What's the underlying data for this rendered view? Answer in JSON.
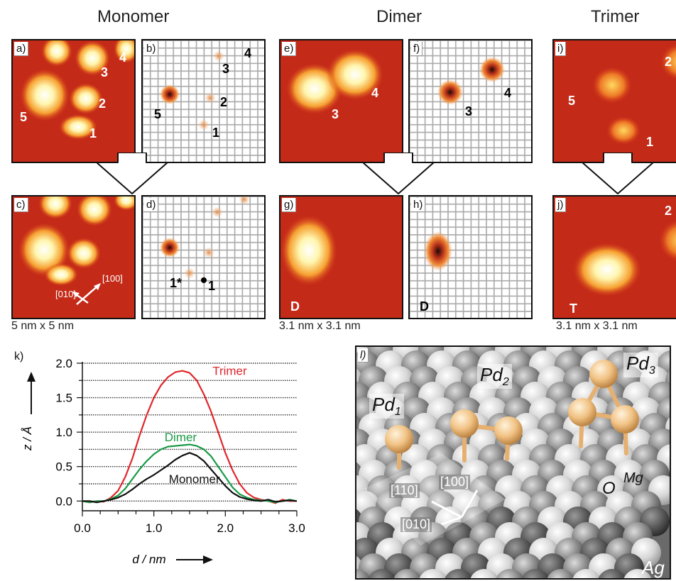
{
  "columns": {
    "monomer": "Monomer",
    "dimer": "Dimer",
    "trimer": "Trimer"
  },
  "panels": {
    "a": "a)",
    "b": "b)",
    "c": "c)",
    "d": "d)",
    "e": "e)",
    "f": "f)",
    "g": "g)",
    "h": "h)",
    "i": "i)",
    "j": "j)",
    "k": "k)",
    "l": "l)"
  },
  "labels": {
    "a": [
      "1",
      "2",
      "3",
      "4",
      "5"
    ],
    "b": [
      "1",
      "2",
      "3",
      "4",
      "5"
    ],
    "d": [
      "1*",
      "1"
    ],
    "e": [
      "3",
      "4"
    ],
    "f": [
      "3",
      "4"
    ],
    "g": "D",
    "h": "D",
    "i": [
      "1",
      "2",
      "5"
    ],
    "j": [
      "2",
      "T"
    ]
  },
  "directions_c": [
    "[010]",
    "[100]"
  ],
  "scales": {
    "monomer": "5 nm x 5 nm",
    "dimer": "3.1 nm x 3.1 nm",
    "trimer": "3.1 nm x 3.1 nm"
  },
  "model": {
    "pd1": "Pd",
    "pd1_sub": "1",
    "pd2": "Pd",
    "pd2_sub": "2",
    "pd3": "Pd",
    "pd3_sub": "3",
    "o": "O",
    "mg": "Mg",
    "ag": "Ag",
    "dirs": [
      "[110]",
      "[100]",
      "[010]"
    ]
  },
  "colors": {
    "trimer": "#e0262c",
    "dimer": "#1a9a46",
    "monomer": "#111111"
  },
  "chart_data": {
    "type": "line",
    "xlabel": "d / nm",
    "ylabel": "z / Å",
    "xlim": [
      0,
      3.0
    ],
    "ylim": [
      -0.1,
      2.0
    ],
    "xticks": [
      "0.0",
      "1.0",
      "2.0",
      "3.0"
    ],
    "yticks": [
      "0.0",
      "0.5",
      "1.0",
      "1.5",
      "2.0"
    ],
    "grid": "horizontal dashed",
    "series": [
      {
        "name": "Trimer",
        "color": "#e0262c",
        "x": [
          0,
          0.1,
          0.2,
          0.3,
          0.4,
          0.5,
          0.6,
          0.7,
          0.8,
          0.9,
          1.0,
          1.1,
          1.2,
          1.3,
          1.4,
          1.5,
          1.6,
          1.7,
          1.8,
          1.9,
          2.0,
          2.1,
          2.2,
          2.3,
          2.4,
          2.5,
          2.6,
          2.7,
          2.8,
          2.9,
          3.0
        ],
        "y": [
          0.0,
          -0.02,
          0.0,
          -0.01,
          0.05,
          0.15,
          0.35,
          0.62,
          0.95,
          1.25,
          1.5,
          1.68,
          1.8,
          1.87,
          1.89,
          1.86,
          1.75,
          1.55,
          1.3,
          1.0,
          0.7,
          0.45,
          0.25,
          0.12,
          0.05,
          0.02,
          0.0,
          -0.03,
          0.02,
          0.0,
          0.0
        ]
      },
      {
        "name": "Dimer",
        "color": "#1a9a46",
        "x": [
          0,
          0.1,
          0.2,
          0.3,
          0.4,
          0.5,
          0.6,
          0.7,
          0.8,
          0.9,
          1.0,
          1.1,
          1.2,
          1.3,
          1.4,
          1.5,
          1.6,
          1.7,
          1.8,
          1.9,
          2.0,
          2.1,
          2.2,
          2.3,
          2.4,
          2.5,
          2.6,
          2.7,
          2.8,
          2.9,
          3.0
        ],
        "y": [
          0.0,
          -0.02,
          0.0,
          0.0,
          0.03,
          0.08,
          0.18,
          0.32,
          0.46,
          0.58,
          0.68,
          0.75,
          0.79,
          0.8,
          0.81,
          0.82,
          0.8,
          0.75,
          0.65,
          0.5,
          0.35,
          0.2,
          0.1,
          0.05,
          0.02,
          0.01,
          0.0,
          -0.02,
          0.0,
          0.02,
          0.0
        ]
      },
      {
        "name": "Monomer",
        "color": "#111111",
        "x": [
          0,
          0.1,
          0.2,
          0.3,
          0.4,
          0.5,
          0.6,
          0.7,
          0.8,
          0.9,
          1.0,
          1.1,
          1.2,
          1.3,
          1.4,
          1.5,
          1.6,
          1.7,
          1.8,
          1.9,
          2.0,
          2.1,
          2.2,
          2.3,
          2.4,
          2.5,
          2.6,
          2.7,
          2.8,
          2.9,
          3.0
        ],
        "y": [
          0.0,
          0.0,
          -0.02,
          0.0,
          0.02,
          0.05,
          0.1,
          0.17,
          0.25,
          0.32,
          0.38,
          0.45,
          0.52,
          0.6,
          0.66,
          0.7,
          0.66,
          0.58,
          0.46,
          0.34,
          0.22,
          0.12,
          0.06,
          0.03,
          0.01,
          0.0,
          0.02,
          -0.01,
          0.0,
          0.01,
          0.0
        ]
      }
    ]
  }
}
